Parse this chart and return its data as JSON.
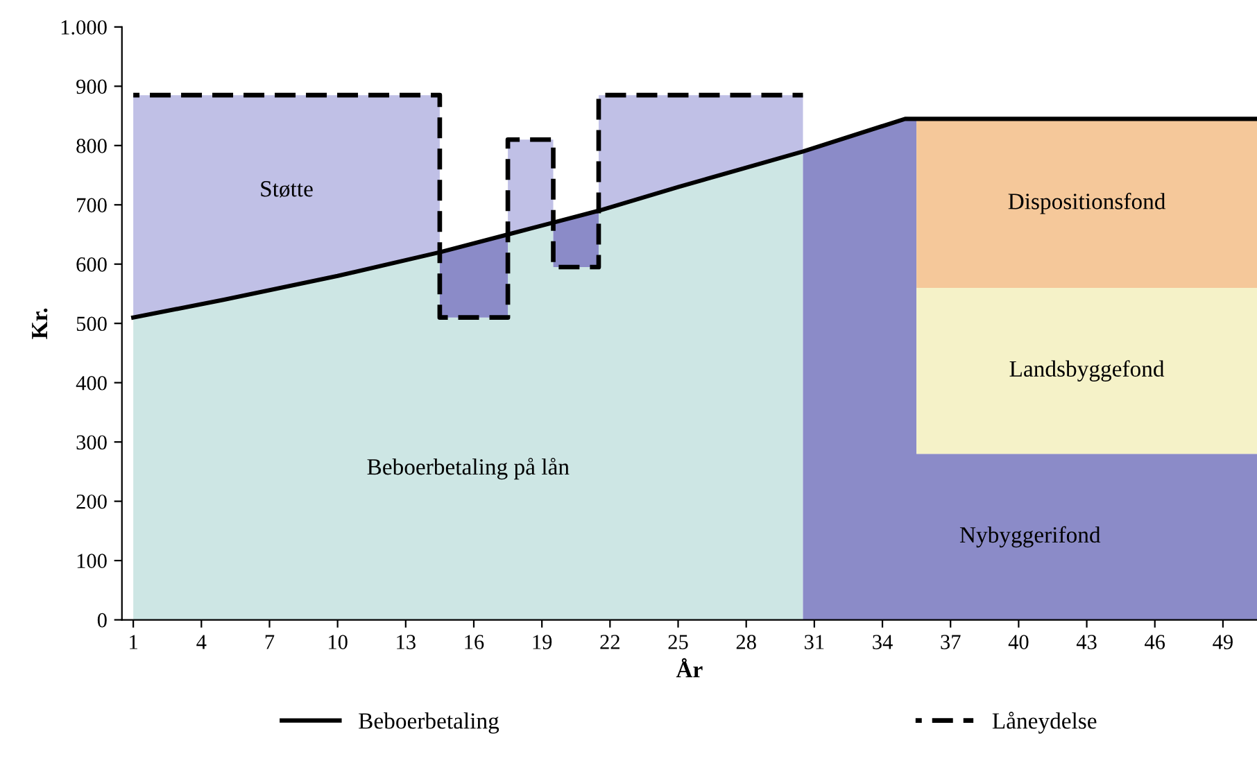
{
  "chart_data": {
    "type": "area",
    "stacked": true,
    "xlabel": "År",
    "ylabel": "Kr.",
    "xlim": [
      0.5,
      50.5
    ],
    "xticks": [
      1,
      4,
      7,
      10,
      13,
      16,
      19,
      22,
      25,
      28,
      31,
      34,
      37,
      40,
      43,
      46,
      49
    ],
    "ylim": [
      0,
      1000
    ],
    "yticks": [
      0,
      100,
      200,
      300,
      400,
      500,
      600,
      700,
      800,
      900,
      {
        "value": 1000,
        "label": "1.000"
      }
    ],
    "grid": false,
    "legend": "bottom",
    "x": [
      1,
      5,
      10,
      14.5,
      14.5,
      17.5,
      17.5,
      19.5,
      19.5,
      21.5,
      21.5,
      25,
      30.5,
      30.5,
      35,
      35.5,
      35.5,
      50.5
    ],
    "series": [
      {
        "name": "Beboerbetaling på lån",
        "color": "#cde6e4",
        "values": [
          510,
          540,
          580,
          620,
          510,
          510,
          650,
          670,
          595,
          595,
          690,
          730,
          790,
          null,
          null,
          null,
          null,
          null
        ]
      },
      {
        "color": "#8b8bc8",
        "values": [
          null,
          null,
          null,
          null,
          110,
          140,
          null,
          null,
          75,
          95,
          null,
          null,
          null,
          null,
          null,
          null,
          null,
          null
        ]
      },
      {
        "name": "Støtte",
        "color": "#c0c0e6",
        "values": [
          375,
          345,
          305,
          265,
          null,
          null,
          160,
          140,
          null,
          null,
          195,
          155,
          95,
          null,
          null,
          null,
          null,
          null
        ]
      },
      {
        "name": "Nybyggerifond",
        "color": "#8b8bc8",
        "values": [
          null,
          null,
          null,
          null,
          null,
          null,
          null,
          null,
          null,
          null,
          null,
          null,
          null,
          790,
          845,
          845,
          280,
          280
        ]
      },
      {
        "name": "Landsbyggefond",
        "color": "#f5f2c8",
        "values": [
          null,
          null,
          null,
          null,
          null,
          null,
          null,
          null,
          null,
          null,
          null,
          null,
          null,
          null,
          null,
          null,
          280,
          280
        ]
      },
      {
        "name": "Dispositionsfond",
        "color": "#f5c89a",
        "values": [
          null,
          null,
          null,
          null,
          null,
          null,
          null,
          null,
          null,
          null,
          null,
          null,
          null,
          null,
          null,
          null,
          285,
          285
        ]
      },
      {
        "type": "line",
        "name": "Beboerbetaling",
        "color": "#000000",
        "line_style": "solid",
        "x": [
          1,
          5,
          10,
          14.5,
          17.5,
          19.5,
          21.5,
          25,
          30.5,
          35,
          50.5
        ],
        "values": [
          510,
          540,
          580,
          620,
          650,
          670,
          690,
          730,
          790,
          845,
          845
        ]
      },
      {
        "type": "line",
        "name": "Låneydelse",
        "color": "#000000",
        "line_style": "dashed",
        "x": [
          1,
          14.5,
          14.5,
          17.5,
          17.5,
          19.5,
          19.5,
          21.5,
          21.5,
          30.5
        ],
        "values": [
          885,
          885,
          510,
          510,
          810,
          810,
          595,
          595,
          885,
          885
        ]
      }
    ]
  }
}
